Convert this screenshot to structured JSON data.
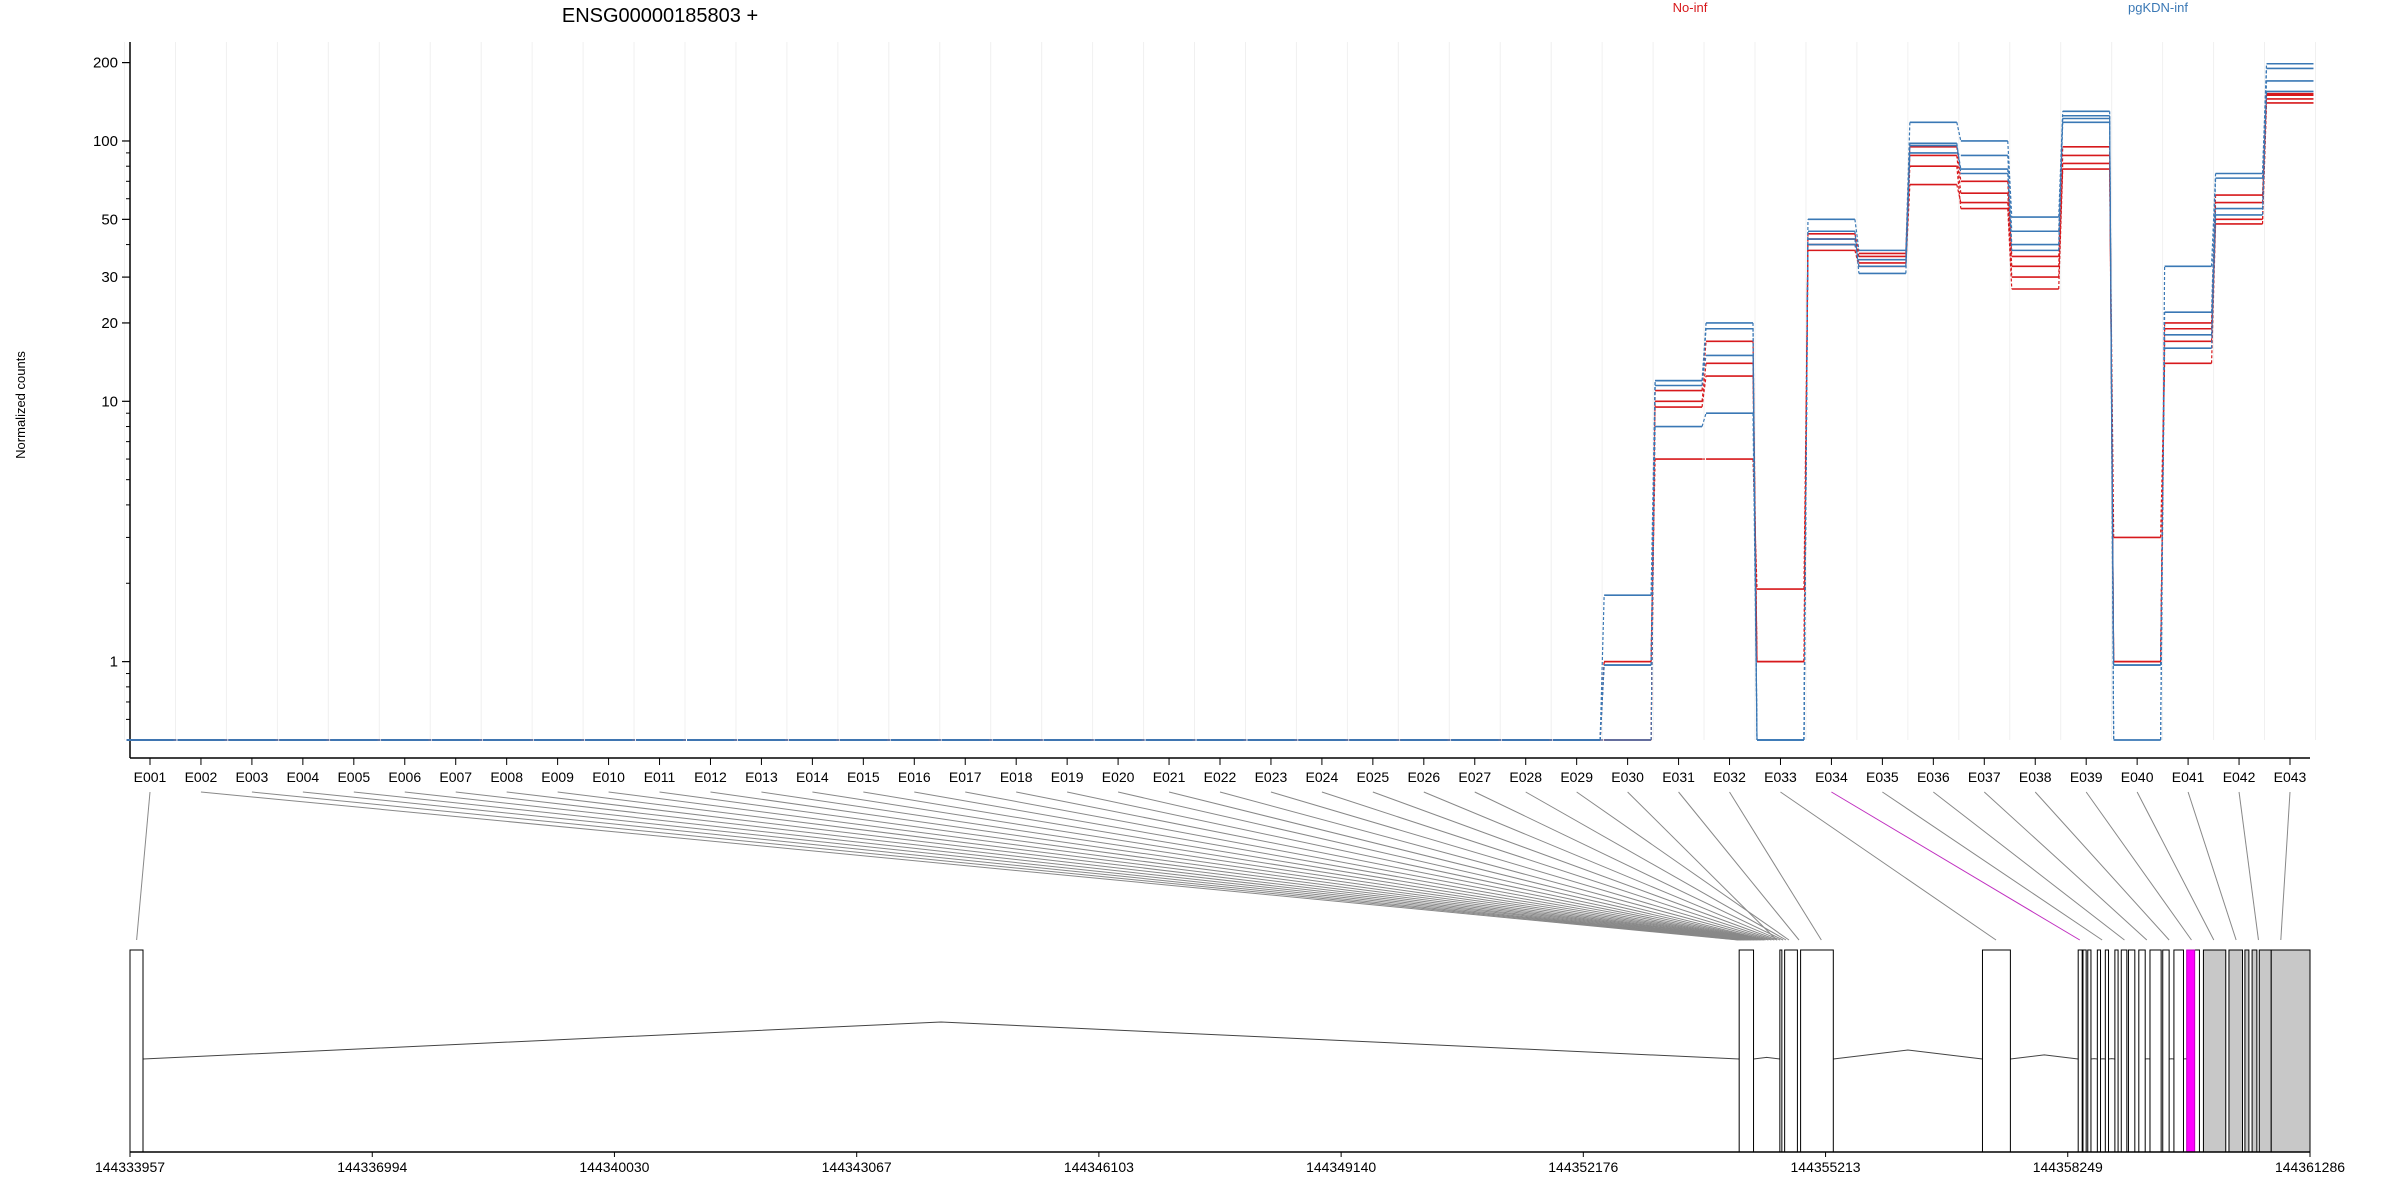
{
  "chart_data": {
    "type": "line",
    "title": "ENSG00000185803 +",
    "ylabel": "Normalized counts",
    "xlabel": "",
    "y_scale": "log",
    "ylim": [
      0.5,
      240
    ],
    "y_ticks": [
      1,
      10,
      20,
      30,
      50,
      100,
      200
    ],
    "grid": true,
    "legend": [
      {
        "name": "No-inf",
        "color": "#d7191c"
      },
      {
        "name": "pgKDN-inf",
        "color": "#3a78b5"
      }
    ],
    "legend_placement": "top-right",
    "categories": [
      "E001",
      "E002",
      "E003",
      "E004",
      "E005",
      "E006",
      "E007",
      "E008",
      "E009",
      "E010",
      "E011",
      "E012",
      "E013",
      "E014",
      "E015",
      "E016",
      "E017",
      "E018",
      "E019",
      "E020",
      "E021",
      "E022",
      "E023",
      "E024",
      "E025",
      "E026",
      "E027",
      "E028",
      "E029",
      "E030",
      "E031",
      "E032",
      "E033",
      "E034",
      "E035",
      "E036",
      "E037",
      "E038",
      "E039",
      "E040",
      "E041",
      "E042",
      "E043"
    ],
    "highlighted_exon": "E034",
    "series": [
      {
        "group": "No-inf",
        "values_tail": [
          0.5,
          1.0,
          6.0,
          6.0,
          1.9,
          40,
          34,
          80,
          55,
          27,
          78,
          3.0,
          14,
          48,
          140
        ]
      },
      {
        "group": "No-inf",
        "values_tail": [
          0.5,
          1.0,
          10.0,
          14,
          1.0,
          38,
          33,
          68,
          58,
          30,
          82,
          1.0,
          17,
          50,
          145
        ]
      },
      {
        "group": "No-inf",
        "values_tail": [
          0.5,
          0.5,
          9.5,
          12.5,
          1.0,
          42,
          36,
          88,
          63,
          33,
          88,
          1.0,
          19,
          58,
          150
        ]
      },
      {
        "group": "No-inf",
        "values_tail": [
          0.5,
          0.5,
          11,
          17,
          1.0,
          44,
          37,
          95,
          70,
          36,
          95,
          1.0,
          20,
          62,
          152
        ]
      },
      {
        "group": "pgKDN-inf",
        "values_tail": [
          0.5,
          1.8,
          12,
          20,
          0.5,
          50,
          38,
          118,
          100,
          51,
          130,
          0.5,
          33,
          75,
          198
        ]
      },
      {
        "group": "pgKDN-inf",
        "values_tail": [
          0.5,
          0.97,
          8,
          9,
          0.5,
          45,
          31,
          90,
          88,
          45,
          125,
          0.5,
          22,
          72,
          190
        ]
      },
      {
        "group": "pgKDN-inf",
        "values_tail": [
          0.5,
          0.97,
          12,
          15,
          0.5,
          42,
          33,
          98,
          75,
          38,
          122,
          0.97,
          18,
          55,
          170
        ]
      },
      {
        "group": "pgKDN-inf",
        "values_tail": [
          0.5,
          0.5,
          11.5,
          19,
          0.5,
          40,
          35,
          96,
          78,
          40,
          118,
          0.97,
          16,
          52,
          155
        ]
      }
    ],
    "values_tail_start": "E029",
    "values_before_tail": 0.5,
    "genomic_axis_ticks": [
      "144333957",
      "144336994",
      "144340030",
      "144343067",
      "144346103",
      "144349140",
      "144352176",
      "144355213",
      "144358249",
      "144361286"
    ],
    "genomic_range": [
      144333957,
      144361286
    ],
    "exon_blocks": [
      [
        144333957,
        144334120
      ],
      [
        144354130,
        144354310
      ],
      [
        144354640,
        144354660
      ],
      [
        144354700,
        144354860
      ],
      [
        144354900,
        144355310
      ],
      [
        144357180,
        144357530
      ],
      [
        144358380,
        144358430
      ],
      [
        144358440,
        144358480
      ],
      [
        144358500,
        144358540
      ],
      [
        144358620,
        144358660
      ],
      [
        144358720,
        144358760
      ],
      [
        144358840,
        144358880
      ],
      [
        144358920,
        144358990
      ],
      [
        144359010,
        144359090
      ],
      [
        144359140,
        144359220
      ],
      [
        144359280,
        144359420
      ],
      [
        144359440,
        144359520
      ],
      [
        144359580,
        144359700
      ],
      [
        144359760,
        144359900
      ],
      [
        144359950,
        144360230
      ],
      [
        144360270,
        144360440
      ],
      [
        144360470,
        144360520
      ],
      [
        144360560,
        144360620
      ],
      [
        144360650,
        144360800
      ],
      [
        144360800,
        144361286
      ]
    ]
  }
}
